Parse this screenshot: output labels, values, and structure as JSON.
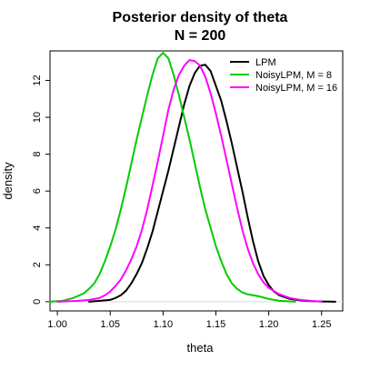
{
  "chart_data": {
    "type": "line",
    "title": "Posterior density of theta",
    "subtitle": "N = 200",
    "xlabel": "theta",
    "ylabel": "density",
    "xlim": [
      0.993,
      1.27
    ],
    "ylim": [
      -0.5,
      13.6
    ],
    "x_ticks": [
      1.0,
      1.05,
      1.1,
      1.15,
      1.2,
      1.25
    ],
    "x_tick_labels": [
      "1.00",
      "1.05",
      "1.10",
      "1.15",
      "1.20",
      "1.25"
    ],
    "y_ticks": [
      0,
      2,
      4,
      6,
      8,
      10,
      12
    ],
    "y_tick_labels": [
      "0",
      "2",
      "4",
      "6",
      "8",
      "10",
      "12"
    ],
    "grid": false,
    "legend_position": "top-right",
    "series": [
      {
        "name": "LPM",
        "color": "#000000",
        "x": [
          1.03,
          1.04,
          1.05,
          1.055,
          1.06,
          1.065,
          1.07,
          1.075,
          1.08,
          1.085,
          1.09,
          1.095,
          1.1,
          1.105,
          1.11,
          1.115,
          1.12,
          1.125,
          1.13,
          1.135,
          1.14,
          1.145,
          1.15,
          1.155,
          1.16,
          1.165,
          1.17,
          1.175,
          1.18,
          1.185,
          1.19,
          1.195,
          1.2,
          1.205,
          1.21,
          1.22,
          1.23,
          1.24,
          1.25,
          1.263
        ],
        "y": [
          0.0,
          0.05,
          0.1,
          0.2,
          0.35,
          0.6,
          1.0,
          1.5,
          2.1,
          2.9,
          3.8,
          4.9,
          6.0,
          7.1,
          8.3,
          9.5,
          10.7,
          11.7,
          12.4,
          12.8,
          12.85,
          12.5,
          11.7,
          10.9,
          9.8,
          8.6,
          7.3,
          6.0,
          4.6,
          3.3,
          2.2,
          1.4,
          0.9,
          0.55,
          0.35,
          0.15,
          0.07,
          0.03,
          0.01,
          0.0
        ]
      },
      {
        "name": "NoisyLPM, M = 8",
        "color": "#00cc00",
        "x": [
          0.993,
          1.005,
          1.015,
          1.025,
          1.03,
          1.035,
          1.04,
          1.045,
          1.05,
          1.055,
          1.06,
          1.065,
          1.07,
          1.075,
          1.08,
          1.085,
          1.09,
          1.095,
          1.1,
          1.105,
          1.11,
          1.115,
          1.12,
          1.125,
          1.13,
          1.135,
          1.14,
          1.145,
          1.15,
          1.155,
          1.16,
          1.165,
          1.17,
          1.175,
          1.18,
          1.19,
          1.2,
          1.21,
          1.225
        ],
        "y": [
          0.0,
          0.05,
          0.2,
          0.45,
          0.7,
          1.0,
          1.5,
          2.2,
          3.0,
          3.9,
          5.0,
          6.2,
          7.5,
          8.8,
          10.0,
          11.2,
          12.3,
          13.2,
          13.5,
          13.2,
          12.3,
          11.2,
          10.0,
          8.8,
          7.5,
          6.2,
          5.0,
          4.0,
          3.0,
          2.2,
          1.5,
          1.0,
          0.7,
          0.5,
          0.4,
          0.3,
          0.15,
          0.05,
          0.0
        ]
      },
      {
        "name": "NoisyLPM, M = 16",
        "color": "#ff00ff",
        "x": [
          1.0,
          1.02,
          1.03,
          1.04,
          1.045,
          1.05,
          1.055,
          1.06,
          1.065,
          1.07,
          1.075,
          1.08,
          1.085,
          1.09,
          1.095,
          1.1,
          1.105,
          1.11,
          1.115,
          1.12,
          1.125,
          1.13,
          1.135,
          1.14,
          1.145,
          1.15,
          1.155,
          1.16,
          1.165,
          1.17,
          1.175,
          1.18,
          1.185,
          1.19,
          1.195,
          1.2,
          1.21,
          1.22,
          1.23,
          1.24,
          1.25
        ],
        "y": [
          0.0,
          0.05,
          0.1,
          0.2,
          0.35,
          0.55,
          0.85,
          1.2,
          1.7,
          2.3,
          3.0,
          3.9,
          5.0,
          6.3,
          7.6,
          9.0,
          10.4,
          11.5,
          12.3,
          12.8,
          13.1,
          13.05,
          12.8,
          12.2,
          11.3,
          10.2,
          9.0,
          7.7,
          6.4,
          5.1,
          3.9,
          2.9,
          2.1,
          1.5,
          1.05,
          0.75,
          0.4,
          0.2,
          0.1,
          0.04,
          0.0
        ]
      }
    ]
  }
}
